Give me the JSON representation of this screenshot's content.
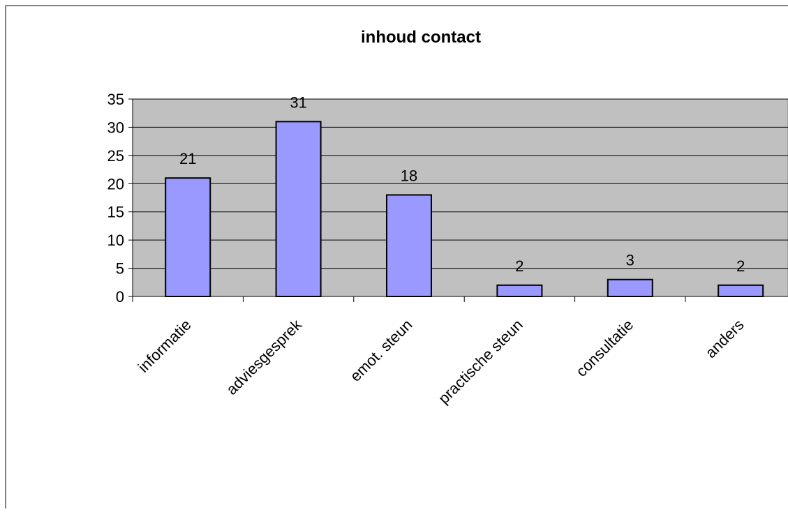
{
  "chart_data": {
    "type": "bar",
    "title": "inhoud contact",
    "xlabel": "",
    "ylabel": "",
    "categories": [
      "informatie",
      "adviesgesprek",
      "emot. steun",
      "practische steun",
      "consultatie",
      "anders"
    ],
    "values": [
      21,
      31,
      18,
      2,
      3,
      2
    ],
    "data_labels": [
      "21",
      "31",
      "18",
      "2",
      "3",
      "2"
    ],
    "ylim": [
      0,
      35
    ],
    "yticks": [
      "0",
      "5",
      "10",
      "15",
      "20",
      "25",
      "30",
      "35"
    ],
    "grid": true,
    "legend": "none",
    "colors": {
      "bar_fill": "#9999ff",
      "bar_stroke": "#000000",
      "plot_background": "#c0c0c0",
      "grid": "#000000"
    }
  }
}
